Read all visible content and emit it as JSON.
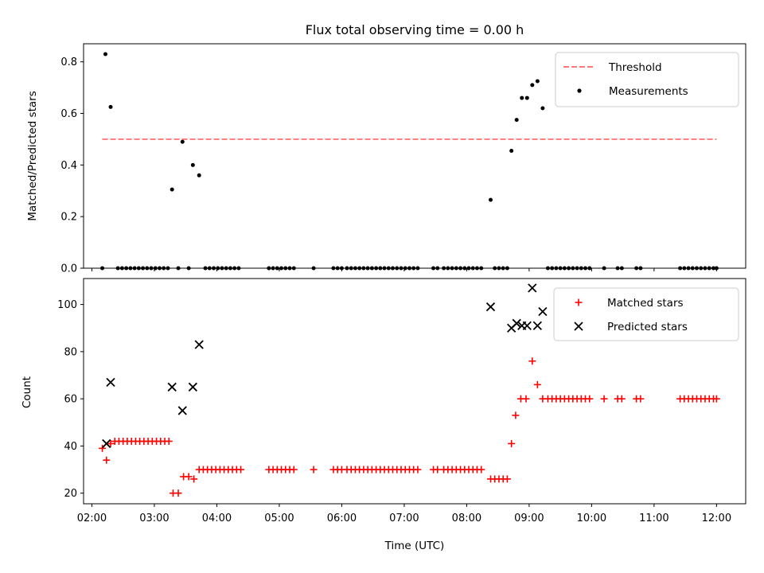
{
  "figure": {
    "title": "Flux total observing time = 0.00 h"
  },
  "chart_data": [
    {
      "type": "scatter",
      "title": "Flux total observing time = 0.00 h",
      "xlabel": "",
      "ylabel": "Matched/Predicted stars",
      "xlim": [
        "01:52",
        "12:28"
      ],
      "ylim": [
        0,
        0.87
      ],
      "yticks": [
        "0.0",
        "0.2",
        "0.4",
        "0.6",
        "0.8"
      ],
      "legend_position": "top-right",
      "threshold": {
        "name": "Threshold",
        "value": 0.5,
        "x_start": "02:10",
        "x_end": "12:00",
        "color": "#ff7777",
        "style": "dashed"
      },
      "series": [
        {
          "name": "Measurements",
          "color": "#000000",
          "marker": "dot",
          "points": [
            [
              "02:10",
              0.0
            ],
            [
              "02:13",
              0.83
            ],
            [
              "02:18",
              0.625
            ],
            [
              "02:25",
              0.0
            ],
            [
              "02:29",
              0.0
            ],
            [
              "02:33",
              0.0
            ],
            [
              "02:37",
              0.0
            ],
            [
              "02:41",
              0.0
            ],
            [
              "02:45",
              0.0
            ],
            [
              "02:49",
              0.0
            ],
            [
              "02:53",
              0.0
            ],
            [
              "02:57",
              0.0
            ],
            [
              "03:01",
              0.0
            ],
            [
              "03:05",
              0.0
            ],
            [
              "03:09",
              0.0
            ],
            [
              "03:13",
              0.0
            ],
            [
              "03:17",
              0.305
            ],
            [
              "03:23",
              0.0
            ],
            [
              "03:27",
              0.49
            ],
            [
              "03:33",
              0.0
            ],
            [
              "03:37",
              0.4
            ],
            [
              "03:43",
              0.36
            ],
            [
              "03:49",
              0.0
            ],
            [
              "03:53",
              0.0
            ],
            [
              "03:57",
              0.0
            ],
            [
              "04:01",
              0.0
            ],
            [
              "04:05",
              0.0
            ],
            [
              "04:09",
              0.0
            ],
            [
              "04:13",
              0.0
            ],
            [
              "04:17",
              0.0
            ],
            [
              "04:21",
              0.0
            ],
            [
              "04:50",
              0.0
            ],
            [
              "04:54",
              0.0
            ],
            [
              "04:58",
              0.0
            ],
            [
              "05:02",
              0.0
            ],
            [
              "05:06",
              0.0
            ],
            [
              "05:10",
              0.0
            ],
            [
              "05:14",
              0.0
            ],
            [
              "05:33",
              0.0
            ],
            [
              "05:52",
              0.0
            ],
            [
              "05:56",
              0.0
            ],
            [
              "06:00",
              0.0
            ],
            [
              "06:05",
              0.0
            ],
            [
              "06:09",
              0.0
            ],
            [
              "06:13",
              0.0
            ],
            [
              "06:17",
              0.0
            ],
            [
              "06:21",
              0.0
            ],
            [
              "06:25",
              0.0
            ],
            [
              "06:29",
              0.0
            ],
            [
              "06:33",
              0.0
            ],
            [
              "06:37",
              0.0
            ],
            [
              "06:41",
              0.0
            ],
            [
              "06:45",
              0.0
            ],
            [
              "06:49",
              0.0
            ],
            [
              "06:53",
              0.0
            ],
            [
              "06:57",
              0.0
            ],
            [
              "07:01",
              0.0
            ],
            [
              "07:05",
              0.0
            ],
            [
              "07:09",
              0.0
            ],
            [
              "07:13",
              0.0
            ],
            [
              "07:28",
              0.0
            ],
            [
              "07:32",
              0.0
            ],
            [
              "07:38",
              0.0
            ],
            [
              "07:42",
              0.0
            ],
            [
              "07:46",
              0.0
            ],
            [
              "07:50",
              0.0
            ],
            [
              "07:54",
              0.0
            ],
            [
              "07:58",
              0.0
            ],
            [
              "08:02",
              0.0
            ],
            [
              "08:06",
              0.0
            ],
            [
              "08:10",
              0.0
            ],
            [
              "08:14",
              0.0
            ],
            [
              "08:23",
              0.265
            ],
            [
              "08:27",
              0.0
            ],
            [
              "08:31",
              0.0
            ],
            [
              "08:35",
              0.0
            ],
            [
              "08:39",
              0.0
            ],
            [
              "08:43",
              0.455
            ],
            [
              "08:48",
              0.575
            ],
            [
              "08:53",
              0.66
            ],
            [
              "08:58",
              0.66
            ],
            [
              "09:03",
              0.71
            ],
            [
              "09:08",
              0.725
            ],
            [
              "09:13",
              0.62
            ],
            [
              "09:18",
              0.0
            ],
            [
              "09:22",
              0.0
            ],
            [
              "09:26",
              0.0
            ],
            [
              "09:30",
              0.0
            ],
            [
              "09:34",
              0.0
            ],
            [
              "09:38",
              0.0
            ],
            [
              "09:42",
              0.0
            ],
            [
              "09:46",
              0.0
            ],
            [
              "09:50",
              0.0
            ],
            [
              "09:54",
              0.0
            ],
            [
              "09:58",
              0.0
            ],
            [
              "10:12",
              0.0
            ],
            [
              "10:25",
              0.0
            ],
            [
              "10:29",
              0.0
            ],
            [
              "10:43",
              0.0
            ],
            [
              "10:47",
              0.0
            ],
            [
              "11:25",
              0.0
            ],
            [
              "11:29",
              0.0
            ],
            [
              "11:33",
              0.0
            ],
            [
              "11:37",
              0.0
            ],
            [
              "11:41",
              0.0
            ],
            [
              "11:45",
              0.0
            ],
            [
              "11:49",
              0.0
            ],
            [
              "11:53",
              0.0
            ],
            [
              "11:57",
              0.0
            ],
            [
              "12:00",
              0.0
            ]
          ]
        }
      ]
    },
    {
      "type": "scatter",
      "title": "",
      "xlabel": "Time (UTC)",
      "ylabel": "Count",
      "xlim": [
        "01:52",
        "12:28"
      ],
      "ylim": [
        15.5,
        111
      ],
      "yticks": [
        "20",
        "40",
        "60",
        "80",
        "100"
      ],
      "xticks": [
        "02:00",
        "03:00",
        "04:00",
        "05:00",
        "06:00",
        "07:00",
        "08:00",
        "09:00",
        "10:00",
        "11:00",
        "12:00"
      ],
      "legend_position": "top-right",
      "series": [
        {
          "name": "Matched stars",
          "color": "#ff0000",
          "marker": "plus",
          "points": [
            [
              "02:10",
              39
            ],
            [
              "02:14",
              34
            ],
            [
              "02:18",
              41
            ],
            [
              "02:22",
              42
            ],
            [
              "02:26",
              42
            ],
            [
              "02:30",
              42
            ],
            [
              "02:34",
              42
            ],
            [
              "02:38",
              42
            ],
            [
              "02:42",
              42
            ],
            [
              "02:46",
              42
            ],
            [
              "02:50",
              42
            ],
            [
              "02:54",
              42
            ],
            [
              "02:58",
              42
            ],
            [
              "03:02",
              42
            ],
            [
              "03:06",
              42
            ],
            [
              "03:10",
              42
            ],
            [
              "03:14",
              42
            ],
            [
              "03:18",
              20
            ],
            [
              "03:23",
              20
            ],
            [
              "03:28",
              27
            ],
            [
              "03:33",
              27
            ],
            [
              "03:38",
              26
            ],
            [
              "03:43",
              30
            ],
            [
              "03:47",
              30
            ],
            [
              "03:51",
              30
            ],
            [
              "03:55",
              30
            ],
            [
              "03:59",
              30
            ],
            [
              "04:03",
              30
            ],
            [
              "04:07",
              30
            ],
            [
              "04:11",
              30
            ],
            [
              "04:15",
              30
            ],
            [
              "04:19",
              30
            ],
            [
              "04:23",
              30
            ],
            [
              "04:50",
              30
            ],
            [
              "04:54",
              30
            ],
            [
              "04:58",
              30
            ],
            [
              "05:02",
              30
            ],
            [
              "05:06",
              30
            ],
            [
              "05:10",
              30
            ],
            [
              "05:14",
              30
            ],
            [
              "05:33",
              30
            ],
            [
              "05:52",
              30
            ],
            [
              "05:56",
              30
            ],
            [
              "06:00",
              30
            ],
            [
              "06:05",
              30
            ],
            [
              "06:09",
              30
            ],
            [
              "06:13",
              30
            ],
            [
              "06:17",
              30
            ],
            [
              "06:21",
              30
            ],
            [
              "06:25",
              30
            ],
            [
              "06:29",
              30
            ],
            [
              "06:33",
              30
            ],
            [
              "06:37",
              30
            ],
            [
              "06:41",
              30
            ],
            [
              "06:45",
              30
            ],
            [
              "06:49",
              30
            ],
            [
              "06:53",
              30
            ],
            [
              "06:57",
              30
            ],
            [
              "07:01",
              30
            ],
            [
              "07:05",
              30
            ],
            [
              "07:09",
              30
            ],
            [
              "07:13",
              30
            ],
            [
              "07:28",
              30
            ],
            [
              "07:32",
              30
            ],
            [
              "07:38",
              30
            ],
            [
              "07:42",
              30
            ],
            [
              "07:46",
              30
            ],
            [
              "07:50",
              30
            ],
            [
              "07:54",
              30
            ],
            [
              "07:58",
              30
            ],
            [
              "08:02",
              30
            ],
            [
              "08:06",
              30
            ],
            [
              "08:10",
              30
            ],
            [
              "08:14",
              30
            ],
            [
              "08:23",
              26
            ],
            [
              "08:27",
              26
            ],
            [
              "08:31",
              26
            ],
            [
              "08:35",
              26
            ],
            [
              "08:39",
              26
            ],
            [
              "08:43",
              41
            ],
            [
              "08:47",
              53
            ],
            [
              "08:52",
              60
            ],
            [
              "08:57",
              60
            ],
            [
              "09:03",
              76
            ],
            [
              "09:08",
              66
            ],
            [
              "09:13",
              60
            ],
            [
              "09:18",
              60
            ],
            [
              "09:22",
              60
            ],
            [
              "09:26",
              60
            ],
            [
              "09:30",
              60
            ],
            [
              "09:34",
              60
            ],
            [
              "09:38",
              60
            ],
            [
              "09:42",
              60
            ],
            [
              "09:46",
              60
            ],
            [
              "09:50",
              60
            ],
            [
              "09:54",
              60
            ],
            [
              "09:58",
              60
            ],
            [
              "10:12",
              60
            ],
            [
              "10:25",
              60
            ],
            [
              "10:29",
              60
            ],
            [
              "10:43",
              60
            ],
            [
              "10:47",
              60
            ],
            [
              "11:25",
              60
            ],
            [
              "11:29",
              60
            ],
            [
              "11:33",
              60
            ],
            [
              "11:37",
              60
            ],
            [
              "11:41",
              60
            ],
            [
              "11:45",
              60
            ],
            [
              "11:49",
              60
            ],
            [
              "11:53",
              60
            ],
            [
              "11:57",
              60
            ],
            [
              "12:00",
              60
            ]
          ]
        },
        {
          "name": "Predicted stars",
          "color": "#000000",
          "marker": "x",
          "points": [
            [
              "02:14",
              41
            ],
            [
              "02:18",
              67
            ],
            [
              "03:17",
              65
            ],
            [
              "03:27",
              55
            ],
            [
              "03:37",
              65
            ],
            [
              "03:43",
              83
            ],
            [
              "08:23",
              99
            ],
            [
              "08:43",
              90
            ],
            [
              "08:48",
              92
            ],
            [
              "08:53",
              91
            ],
            [
              "08:58",
              91
            ],
            [
              "09:03",
              107
            ],
            [
              "09:08",
              91
            ],
            [
              "09:13",
              97
            ]
          ]
        }
      ]
    }
  ]
}
